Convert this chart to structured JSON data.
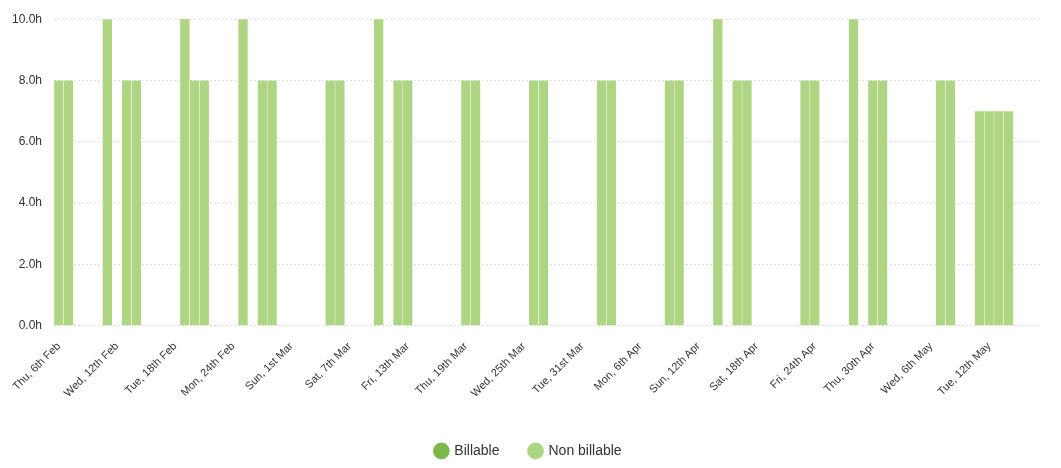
{
  "chart_data": {
    "type": "bar",
    "stacked": true,
    "categories": [
      "Thu, 6th Feb",
      null,
      null,
      null,
      null,
      null,
      "Wed, 12th Feb",
      null,
      null,
      null,
      null,
      null,
      "Tue, 18th Feb",
      null,
      null,
      null,
      null,
      null,
      "Mon, 24th Feb",
      null,
      null,
      null,
      null,
      null,
      "Sun, 1st Mar",
      null,
      null,
      null,
      null,
      null,
      "Sat, 7th Mar",
      null,
      null,
      null,
      null,
      null,
      "Fri, 13th Mar",
      null,
      null,
      null,
      null,
      null,
      "Thu, 19th Mar",
      null,
      null,
      null,
      null,
      null,
      "Wed, 25th Mar",
      null,
      null,
      null,
      null,
      null,
      "Tue, 31st Mar",
      null,
      null,
      null,
      null,
      null,
      "Mon, 6th Apr",
      null,
      null,
      null,
      null,
      null,
      "Sun, 12th Apr",
      null,
      null,
      null,
      null,
      null,
      "Sat, 18th Apr",
      null,
      null,
      null,
      null,
      null,
      "Fri, 24th Apr",
      null,
      null,
      null,
      null,
      null,
      "Thu, 30th Apr",
      null,
      null,
      null,
      null,
      null,
      "Wed, 6th May",
      null,
      null,
      null,
      null,
      null,
      "Tue, 12th May",
      null,
      null,
      null,
      null,
      null
    ],
    "series": [
      {
        "name": "Billable",
        "color": "#7cb84a",
        "values": [
          null,
          null,
          null,
          null,
          null,
          null,
          null,
          null,
          null,
          null,
          null,
          null,
          null,
          null,
          null,
          null,
          null,
          null,
          null,
          null,
          null,
          null,
          null,
          null,
          null,
          null,
          null,
          null,
          null,
          null,
          null,
          null,
          null,
          null,
          null,
          null,
          null,
          null,
          null,
          null,
          null,
          null,
          null,
          null,
          null,
          null,
          null,
          null,
          null,
          null,
          null,
          null,
          null,
          null,
          null,
          null,
          null,
          null,
          null,
          null,
          null,
          null,
          null,
          null,
          null,
          null,
          null,
          null,
          null,
          null,
          null,
          null,
          null,
          null,
          null,
          null,
          null,
          null,
          null,
          null,
          null,
          null,
          null,
          null,
          null,
          null,
          null,
          null,
          null,
          null,
          null,
          null,
          null,
          null,
          null,
          null,
          null,
          null,
          null,
          null,
          null,
          null
        ]
      },
      {
        "name": "Non billable",
        "color": "#aed581",
        "values": [
          8,
          8,
          null,
          null,
          null,
          10,
          null,
          8,
          8,
          null,
          null,
          null,
          null,
          10,
          8,
          8,
          null,
          null,
          null,
          10,
          null,
          8,
          8,
          null,
          null,
          null,
          null,
          null,
          8,
          8,
          null,
          null,
          null,
          10,
          null,
          8,
          8,
          null,
          null,
          null,
          null,
          null,
          8,
          8,
          null,
          null,
          null,
          null,
          null,
          8,
          8,
          null,
          null,
          null,
          null,
          null,
          8,
          8,
          null,
          null,
          null,
          null,
          null,
          8,
          8,
          null,
          null,
          null,
          10,
          null,
          8,
          8,
          null,
          null,
          null,
          null,
          null,
          8,
          8,
          null,
          null,
          null,
          10,
          null,
          8,
          8,
          null,
          null,
          null,
          null,
          null,
          8,
          8,
          null,
          null,
          7,
          7,
          7,
          7,
          null,
          null,
          null
        ]
      }
    ],
    "ylim": [
      0,
      10
    ],
    "yticks": [
      {
        "value": 0,
        "label": "0.0h"
      },
      {
        "value": 2,
        "label": "2.0h"
      },
      {
        "value": 4,
        "label": "4.0h"
      },
      {
        "value": 6,
        "label": "6.0h"
      },
      {
        "value": 8,
        "label": "8.0h"
      },
      {
        "value": 10,
        "label": "10.0h"
      }
    ],
    "grid": "y",
    "legend": "bottom"
  }
}
